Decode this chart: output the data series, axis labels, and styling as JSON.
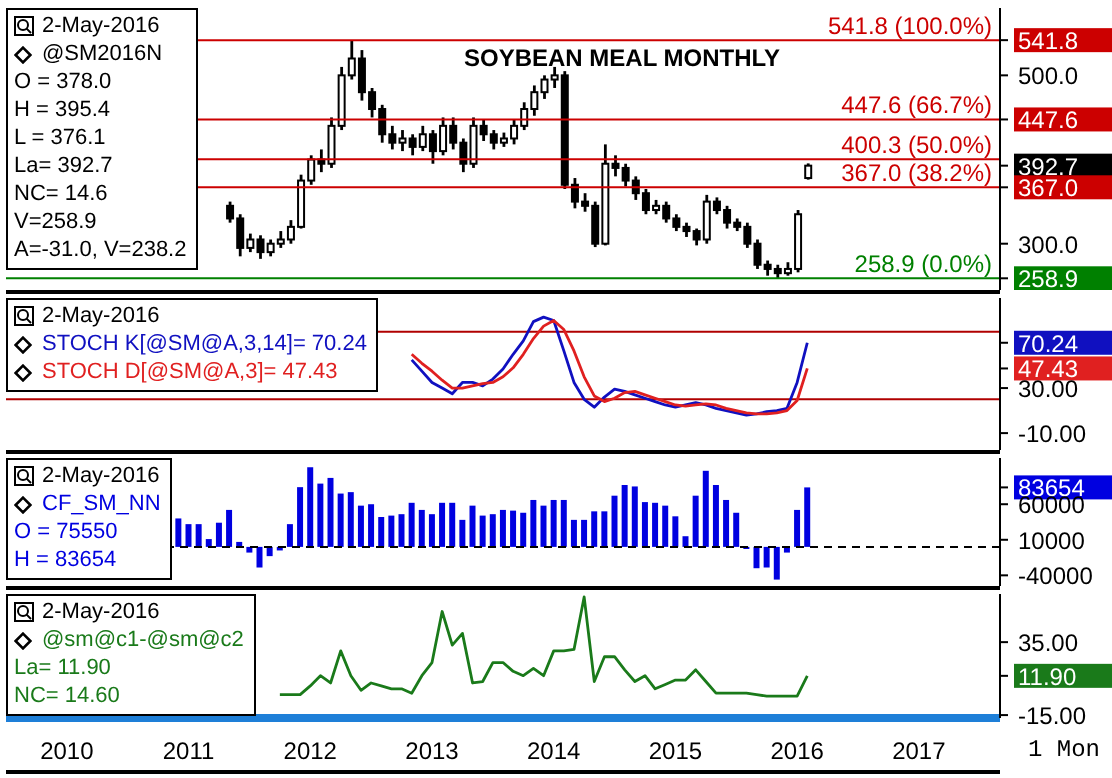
{
  "chart_data": [
    {
      "type": "candlestick",
      "title": "SOYBEAN MEAL MONTHLY",
      "legend": "left",
      "tick_labels": "y",
      "xlim": [
        "2009-10",
        "2017-12"
      ],
      "ylim": [
        245,
        580
      ],
      "yticks": [
        {
          "value": 541.8,
          "label": "541.8"
        },
        {
          "value": 500,
          "label": "500.0"
        },
        {
          "value": 447.6,
          "label": "447.6"
        },
        {
          "value": 392.7,
          "label": "392.7"
        },
        {
          "value": 367.0,
          "label": "367.0"
        },
        {
          "value": 300,
          "label": "300.0"
        },
        {
          "value": 258.9,
          "label": "258.9"
        }
      ],
      "series": [
        {
          "name": "@SM2016N",
          "color": "#000000",
          "x": [
            "2011-08",
            "2011-09",
            "2011-10",
            "2011-11",
            "2011-12",
            "2012-01",
            "2012-02",
            "2012-03",
            "2012-04",
            "2012-05",
            "2012-06",
            "2012-07",
            "2012-08",
            "2012-09",
            "2012-10",
            "2012-11",
            "2012-12",
            "2013-01",
            "2013-02",
            "2013-03",
            "2013-04",
            "2013-05",
            "2013-06",
            "2013-07",
            "2013-08",
            "2013-09",
            "2013-10",
            "2013-11",
            "2013-12",
            "2014-01",
            "2014-02",
            "2014-03",
            "2014-04",
            "2014-05",
            "2014-06",
            "2014-07",
            "2014-08",
            "2014-09",
            "2014-10",
            "2014-11",
            "2014-12",
            "2015-01",
            "2015-02",
            "2015-03",
            "2015-04",
            "2015-05",
            "2015-06",
            "2015-07",
            "2015-08",
            "2015-09",
            "2015-10",
            "2015-11",
            "2015-12",
            "2016-01",
            "2016-02",
            "2016-03",
            "2016-04",
            "2016-05"
          ],
          "ohlc": [
            [
              345,
              350,
              325,
              330
            ],
            [
              330,
              335,
              285,
              295
            ],
            [
              295,
              312,
              290,
              305
            ],
            [
              305,
              310,
              282,
              290
            ],
            [
              290,
              305,
              285,
              300
            ],
            [
              300,
              315,
              295,
              305
            ],
            [
              305,
              328,
              300,
              320
            ],
            [
              320,
              382,
              318,
              375
            ],
            [
              375,
              405,
              370,
              400
            ],
            [
              400,
              412,
              385,
              395
            ],
            [
              395,
              450,
              390,
              440
            ],
            [
              440,
              510,
              435,
              500
            ],
            [
              500,
              541.8,
              495,
              520
            ],
            [
              520,
              530,
              470,
              480
            ],
            [
              480,
              485,
              450,
              460
            ],
            [
              460,
              465,
              420,
              430
            ],
            [
              430,
              440,
              412,
              420
            ],
            [
              420,
              435,
              410,
              425
            ],
            [
              425,
              430,
              405,
              415
            ],
            [
              415,
              440,
              410,
              430
            ],
            [
              430,
              435,
              395,
              410
            ],
            [
              410,
              450,
              405,
              440
            ],
            [
              440,
              450,
              412,
              420
            ],
            [
              420,
              425,
              385,
              395
            ],
            [
              395,
              450,
              390,
              440
            ],
            [
              440,
              448,
              422,
              430
            ],
            [
              430,
              435,
              412,
              420
            ],
            [
              420,
              432,
              415,
              425
            ],
            [
              425,
              448,
              418,
              440
            ],
            [
              440,
              468,
              435,
              460
            ],
            [
              460,
              488,
              452,
              480
            ],
            [
              480,
              500,
              472,
              495
            ],
            [
              495,
              510,
              485,
              500
            ],
            [
              500,
              505,
              365,
              370
            ],
            [
              370,
              378,
              342,
              350
            ],
            [
              350,
              360,
              338,
              345
            ],
            [
              345,
              350,
              296,
              300
            ],
            [
              300,
              418,
              298,
              395
            ],
            [
              395,
              405,
              380,
              390
            ],
            [
              390,
              395,
              368,
              375
            ],
            [
              375,
              380,
              352,
              360
            ],
            [
              360,
              365,
              335,
              340
            ],
            [
              340,
              352,
              335,
              345
            ],
            [
              345,
              350,
              325,
              330
            ],
            [
              330,
              335,
              315,
              320
            ],
            [
              320,
              325,
              308,
              315
            ],
            [
              315,
              318,
              298,
              305
            ],
            [
              305,
              358,
              300,
              350
            ],
            [
              350,
              355,
              335,
              340
            ],
            [
              340,
              345,
              318,
              325
            ],
            [
              325,
              330,
              315,
              320
            ],
            [
              320,
              325,
              295,
              300
            ],
            [
              300,
              305,
              270,
              275
            ],
            [
              275,
              280,
              262,
              270
            ],
            [
              270,
              275,
              258.9,
              265
            ],
            [
              265,
              278,
              262,
              270
            ],
            [
              270,
              340,
              266,
              335
            ],
            [
              378.0,
              395.4,
              376.1,
              392.7
            ]
          ]
        }
      ],
      "ref_lines": [
        {
          "axis": "y",
          "value": 541.8,
          "label": "541.8 (100.0%)",
          "color": "#cc0000"
        },
        {
          "axis": "y",
          "value": 447.6,
          "label": "447.6 (66.7%)",
          "color": "#cc0000"
        },
        {
          "axis": "y",
          "value": 400.3,
          "label": "400.3 (50.0%)",
          "color": "#cc0000"
        },
        {
          "axis": "y",
          "value": 367.0,
          "label": "367.0 (38.2%)",
          "color": "#cc0000"
        },
        {
          "axis": "y",
          "value": 258.9,
          "label": "258.9 (0.0%)",
          "color": "#008000"
        }
      ],
      "annotations": [
        "2-May-2016",
        "O = 378.0",
        "H = 395.4",
        "L = 376.1",
        "La= 392.7",
        "NC= 14.6",
        "V=258.9",
        "A=-31.0, V=238.2"
      ]
    },
    {
      "type": "line",
      "legend": "top left",
      "tick_labels": "y",
      "xlim": [
        "2009-10",
        "2017-12"
      ],
      "ylim": [
        -25,
        110
      ],
      "yticks": [
        {
          "value": 70.24,
          "label": "70.24"
        },
        {
          "value": 47.43,
          "label": "47.43"
        },
        {
          "value": 30,
          "label": "30.00"
        },
        {
          "value": -10,
          "label": "-10.00"
        }
      ],
      "series": [
        {
          "name": "STOCH K[@SM@A,3,14]= 70.24",
          "color": "#1010c0",
          "x": [
            "2013-02",
            "2013-03",
            "2013-04",
            "2013-05",
            "2013-06",
            "2013-07",
            "2013-08",
            "2013-09",
            "2013-10",
            "2013-11",
            "2013-12",
            "2014-01",
            "2014-02",
            "2014-03",
            "2014-04",
            "2014-05",
            "2014-06",
            "2014-07",
            "2014-08",
            "2014-09",
            "2014-10",
            "2014-11",
            "2014-12",
            "2015-01",
            "2015-02",
            "2015-03",
            "2015-04",
            "2015-05",
            "2015-06",
            "2015-07",
            "2015-08",
            "2015-09",
            "2015-10",
            "2015-11",
            "2015-12",
            "2016-01",
            "2016-02",
            "2016-03",
            "2016-04",
            "2016-05"
          ],
          "values": [
            55,
            45,
            35,
            30,
            25,
            35,
            35,
            32,
            38,
            47,
            60,
            72,
            89,
            93,
            90,
            63,
            35,
            20,
            13,
            22,
            29,
            27,
            24,
            21,
            18,
            15,
            13,
            15,
            17,
            15,
            12,
            10,
            8,
            6,
            7,
            9,
            10,
            12,
            35,
            70.24
          ]
        },
        {
          "name": "STOCH D[@SM@A,3]= 47.43",
          "color": "#e02020",
          "x": [
            "2013-02",
            "2013-03",
            "2013-04",
            "2013-05",
            "2013-06",
            "2013-07",
            "2013-08",
            "2013-09",
            "2013-10",
            "2013-11",
            "2013-12",
            "2014-01",
            "2014-02",
            "2014-03",
            "2014-04",
            "2014-05",
            "2014-06",
            "2014-07",
            "2014-08",
            "2014-09",
            "2014-10",
            "2014-11",
            "2014-12",
            "2015-01",
            "2015-02",
            "2015-03",
            "2015-04",
            "2015-05",
            "2015-06",
            "2015-07",
            "2015-08",
            "2015-09",
            "2015-10",
            "2015-11",
            "2015-12",
            "2016-01",
            "2016-02",
            "2016-03",
            "2016-04",
            "2016-05"
          ],
          "values": [
            60,
            52,
            45,
            37,
            30,
            30,
            32,
            34,
            35,
            40,
            48,
            60,
            74,
            85,
            90,
            82,
            63,
            40,
            23,
            18,
            21,
            26,
            27,
            24,
            21,
            18,
            15,
            14,
            15,
            16,
            15,
            12,
            10,
            8,
            7,
            7,
            8,
            10,
            19,
            47.43
          ]
        }
      ],
      "ref_lines": [
        {
          "axis": "y",
          "value": 80,
          "color": "#b00000"
        },
        {
          "axis": "y",
          "value": 20,
          "color": "#b00000"
        }
      ],
      "annotations": [
        "2-May-2016"
      ]
    },
    {
      "type": "bar",
      "legend": "top left",
      "tick_labels": "y",
      "xlim": [
        "2009-10",
        "2017-12"
      ],
      "ylim": [
        -55000,
        125000
      ],
      "yticks": [
        83654,
        60000,
        10000,
        -40000
      ],
      "series": [
        {
          "name": "CF_SM_NN",
          "color": "#0000e0",
          "x": [
            "2011-03",
            "2011-04",
            "2011-05",
            "2011-06",
            "2011-07",
            "2011-08",
            "2011-09",
            "2011-10",
            "2011-11",
            "2011-12",
            "2012-01",
            "2012-02",
            "2012-03",
            "2012-04",
            "2012-05",
            "2012-06",
            "2012-07",
            "2012-08",
            "2012-09",
            "2012-10",
            "2012-11",
            "2012-12",
            "2013-01",
            "2013-02",
            "2013-03",
            "2013-04",
            "2013-05",
            "2013-06",
            "2013-07",
            "2013-08",
            "2013-09",
            "2013-10",
            "2013-11",
            "2013-12",
            "2014-01",
            "2014-02",
            "2014-03",
            "2014-04",
            "2014-05",
            "2014-06",
            "2014-07",
            "2014-08",
            "2014-09",
            "2014-10",
            "2014-11",
            "2014-12",
            "2015-01",
            "2015-02",
            "2015-03",
            "2015-04",
            "2015-05",
            "2015-06",
            "2015-07",
            "2015-08",
            "2015-09",
            "2015-10",
            "2015-11",
            "2015-12",
            "2016-01",
            "2016-02",
            "2016-03",
            "2016-04",
            "2016-05"
          ],
          "values": [
            40000,
            32000,
            32000,
            11000,
            34000,
            52000,
            7000,
            -8000,
            -29000,
            -13000,
            -5000,
            32000,
            84000,
            112000,
            89000,
            97000,
            75000,
            77000,
            58000,
            60000,
            42000,
            44000,
            46000,
            62000,
            52000,
            46000,
            62000,
            62000,
            38000,
            58000,
            44000,
            46000,
            52000,
            51000,
            48000,
            66000,
            58000,
            66000,
            66000,
            38000,
            38000,
            50000,
            50000,
            72000,
            87000,
            85000,
            63000,
            62000,
            58000,
            43000,
            15000,
            72000,
            107000,
            87000,
            66000,
            48000,
            -3000,
            -30000,
            -29000,
            -46000,
            -8000,
            52000,
            83654
          ]
        }
      ],
      "ref_lines": [
        {
          "axis": "y",
          "value": 0,
          "color": "#000000",
          "line_style": "dashed"
        }
      ],
      "annotations": [
        "2-May-2016",
        "O = 75550",
        "H = 83654"
      ]
    },
    {
      "type": "line",
      "legend": "top left",
      "xlabel": "1 Mon",
      "xlim": [
        "2009-10",
        "2017-12"
      ],
      "ylim": [
        -17,
        68
      ],
      "xticks": [
        {
          "value": "2010-04",
          "label": "2010"
        },
        {
          "value": "2011-04",
          "label": "2011"
        },
        {
          "value": "2012-04",
          "label": "2012"
        },
        {
          "value": "2013-04",
          "label": "2013"
        },
        {
          "value": "2014-04",
          "label": "2014"
        },
        {
          "value": "2015-04",
          "label": "2015"
        },
        {
          "value": "2016-04",
          "label": "2016"
        },
        {
          "value": "2017-04",
          "label": "2017"
        }
      ],
      "yticks": [
        {
          "value": 35,
          "label": "35.00"
        },
        {
          "value": 11.9,
          "label": "11.90"
        },
        {
          "value": -15,
          "label": "-15.00"
        }
      ],
      "series": [
        {
          "name": "@sm@c1-@sm@c2",
          "color": "#1a7a1a",
          "x": [
            "2012-01",
            "2012-02",
            "2012-03",
            "2012-04",
            "2012-05",
            "2012-06",
            "2012-07",
            "2012-08",
            "2012-09",
            "2012-10",
            "2012-11",
            "2012-12",
            "2013-01",
            "2013-02",
            "2013-03",
            "2013-04",
            "2013-05",
            "2013-06",
            "2013-07",
            "2013-08",
            "2013-09",
            "2013-10",
            "2013-11",
            "2013-12",
            "2014-01",
            "2014-02",
            "2014-03",
            "2014-04",
            "2014-05",
            "2014-06",
            "2014-07",
            "2014-08",
            "2014-09",
            "2014-10",
            "2014-11",
            "2014-12",
            "2015-01",
            "2015-02",
            "2015-03",
            "2015-04",
            "2015-05",
            "2015-06",
            "2015-07",
            "2015-08",
            "2015-09",
            "2015-10",
            "2015-11",
            "2015-12",
            "2016-01",
            "2016-02",
            "2016-03",
            "2016-04",
            "2016-05"
          ],
          "values": [
            -1,
            -1,
            -1,
            5,
            12,
            7,
            29,
            12,
            2,
            7,
            5,
            3,
            3,
            0,
            12,
            21,
            56,
            33,
            41,
            7,
            8,
            21,
            21,
            15,
            12,
            17,
            12,
            29,
            29,
            30,
            66,
            8,
            25,
            25,
            16,
            8,
            12,
            3,
            6,
            9,
            9,
            16,
            8,
            0,
            0,
            0,
            0,
            -1,
            -2,
            -2,
            -2,
            -2,
            11.9
          ]
        }
      ],
      "annotations": [
        "2-May-2016",
        "La= 11.90",
        "NC= 14.60"
      ]
    }
  ]
}
